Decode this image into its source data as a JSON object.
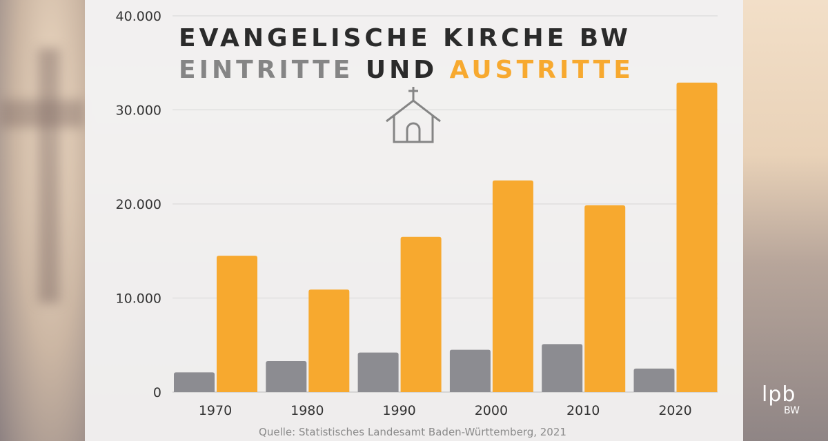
{
  "title_line1": "EVANGELISCHE KIRCHE BW",
  "title_line2": {
    "part1": "EINTRITTE",
    "part2": "UND",
    "part3": "AUSTRITTE"
  },
  "source": "Quelle: Statistisches Landesamt Baden-Württemberg, 2021",
  "logo": {
    "main": "lpb",
    "sub": "BW"
  },
  "icon": "church-icon",
  "colors": {
    "eintritte": "#8c8c91",
    "austritte": "#f7a92f",
    "title_dark": "#2b2b2b",
    "title_gray": "#858585"
  },
  "chart_data": {
    "type": "bar",
    "categories": [
      "1970",
      "1980",
      "1990",
      "2000",
      "2010",
      "2020"
    ],
    "series": [
      {
        "name": "EINTRITTE",
        "values": [
          2100,
          3300,
          4200,
          4500,
          5100,
          2500
        ]
      },
      {
        "name": "AUSTRITTE",
        "values": [
          14500,
          10900,
          16500,
          22500,
          19850,
          32900
        ]
      }
    ],
    "ylim": [
      0,
      40000
    ],
    "yticks": [
      "0",
      "10.000",
      "20.000",
      "30.000",
      "40.000"
    ],
    "grid": true
  }
}
